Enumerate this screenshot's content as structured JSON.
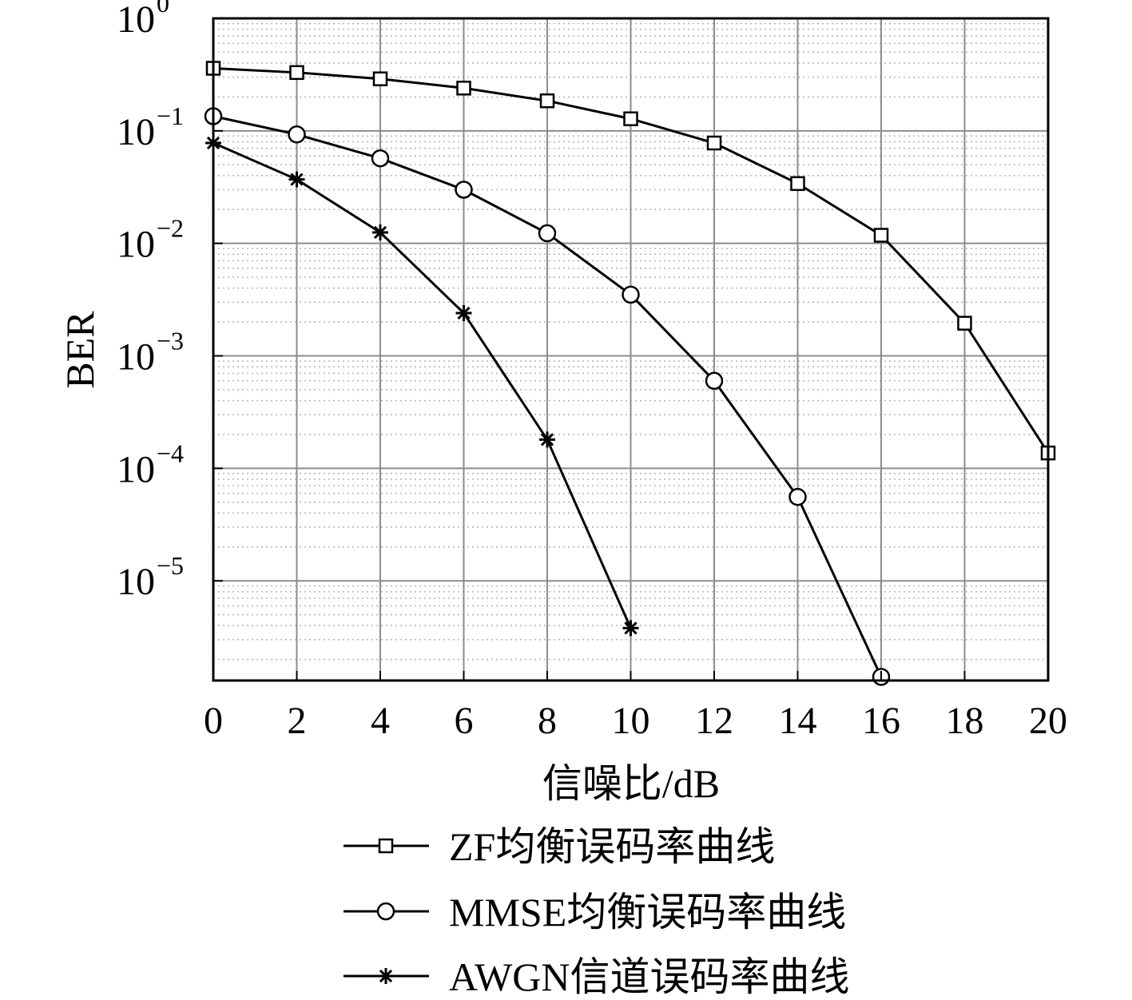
{
  "chart_data": {
    "type": "line",
    "xlabel": "信噪比/dB",
    "ylabel": "BER",
    "y_scale": "log",
    "xlim": [
      0,
      20
    ],
    "ylim": [
      1.3e-06,
      1
    ],
    "grid": true,
    "legend_position": "below-plot",
    "x_ticks": [
      "0",
      "2",
      "4",
      "6",
      "8",
      "10",
      "12",
      "14",
      "16",
      "18",
      "20"
    ],
    "y_ticks": [
      {
        "value": 1,
        "base": "10",
        "exp": "0"
      },
      {
        "value": 0.1,
        "base": "10",
        "exp": "−1"
      },
      {
        "value": 0.01,
        "base": "10",
        "exp": "−2"
      },
      {
        "value": 0.001,
        "base": "10",
        "exp": "−3"
      },
      {
        "value": 0.0001,
        "base": "10",
        "exp": "−4"
      },
      {
        "value": 1e-05,
        "base": "10",
        "exp": "−5"
      }
    ],
    "series": [
      {
        "name": "ZF均衡误码率曲线",
        "marker": "square",
        "x": [
          0,
          2,
          4,
          6,
          8,
          10,
          12,
          14,
          16,
          18,
          20
        ],
        "y": [
          0.36,
          0.33,
          0.29,
          0.24,
          0.185,
          0.128,
          0.078,
          0.034,
          0.0118,
          0.00195,
          0.000137
        ]
      },
      {
        "name": "MMSE均衡误码率曲线",
        "marker": "circle",
        "x": [
          0,
          2,
          4,
          6,
          8,
          10,
          12,
          14,
          16
        ],
        "y": [
          0.135,
          0.093,
          0.057,
          0.03,
          0.0123,
          0.0035,
          0.0006,
          5.57e-05,
          1.4e-06
        ]
      },
      {
        "name": "AWGN信道误码率曲线",
        "marker": "asterisk",
        "x": [
          0,
          2,
          4,
          6,
          8,
          10
        ],
        "y": [
          0.078,
          0.037,
          0.0125,
          0.0024,
          0.00018,
          3.8e-06
        ]
      }
    ]
  },
  "colors": {
    "line": "#000000",
    "major_grid": "#8c8c8c",
    "minor_grid": "#b4b4b4"
  }
}
